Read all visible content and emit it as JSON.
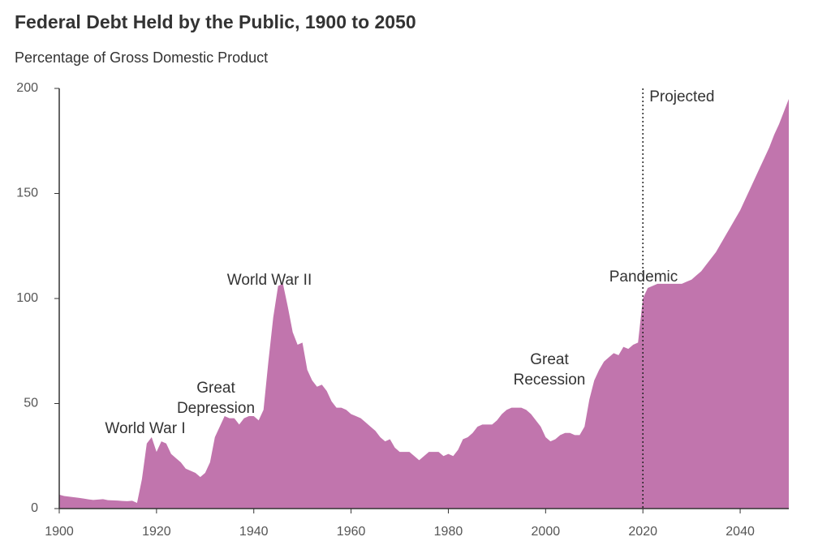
{
  "chart_data": {
    "type": "area",
    "title": "Federal Debt Held by the Public, 1900 to 2050",
    "subtitle": "Percentage of Gross Domestic Product",
    "color": "#c175ad",
    "x": [
      1900,
      1901,
      1902,
      1903,
      1904,
      1905,
      1906,
      1907,
      1908,
      1909,
      1910,
      1911,
      1912,
      1913,
      1914,
      1915,
      1916,
      1917,
      1918,
      1919,
      1920,
      1921,
      1922,
      1923,
      1924,
      1925,
      1926,
      1927,
      1928,
      1929,
      1930,
      1931,
      1932,
      1933,
      1934,
      1935,
      1936,
      1937,
      1938,
      1939,
      1940,
      1941,
      1942,
      1943,
      1944,
      1945,
      1946,
      1947,
      1948,
      1949,
      1950,
      1951,
      1952,
      1953,
      1954,
      1955,
      1956,
      1957,
      1958,
      1959,
      1960,
      1961,
      1962,
      1963,
      1964,
      1965,
      1966,
      1967,
      1968,
      1969,
      1970,
      1971,
      1972,
      1973,
      1974,
      1975,
      1976,
      1977,
      1978,
      1979,
      1980,
      1981,
      1982,
      1983,
      1984,
      1985,
      1986,
      1987,
      1988,
      1989,
      1990,
      1991,
      1992,
      1993,
      1994,
      1995,
      1996,
      1997,
      1998,
      1999,
      2000,
      2001,
      2002,
      2003,
      2004,
      2005,
      2006,
      2007,
      2008,
      2009,
      2010,
      2011,
      2012,
      2013,
      2014,
      2015,
      2016,
      2017,
      2018,
      2019,
      2020,
      2021,
      2022,
      2023,
      2024,
      2025,
      2026,
      2027,
      2028,
      2029,
      2030,
      2031,
      2032,
      2033,
      2034,
      2035,
      2036,
      2037,
      2038,
      2039,
      2040,
      2041,
      2042,
      2043,
      2044,
      2045,
      2046,
      2047,
      2048,
      2049,
      2050
    ],
    "values": [
      6.6,
      6,
      5.7,
      5.4,
      5.1,
      4.8,
      4.4,
      4.1,
      4.3,
      4.5,
      4,
      3.9,
      3.8,
      3.6,
      3.5,
      3.7,
      2.7,
      14,
      31,
      34,
      27,
      32,
      31,
      26,
      24,
      22,
      19,
      18,
      17,
      15,
      17,
      22,
      34,
      39,
      44,
      43,
      43,
      40,
      43,
      44,
      44,
      42,
      47,
      70,
      91,
      106,
      107,
      96,
      84,
      78,
      79,
      66,
      61,
      58,
      59,
      56,
      51,
      48,
      48,
      47,
      45,
      44,
      43,
      41,
      39,
      37,
      34,
      32,
      33,
      29,
      27,
      27,
      27,
      25,
      23,
      25,
      27,
      27,
      27,
      25,
      26,
      25,
      28,
      33,
      34,
      36,
      39,
      40,
      40,
      40,
      42,
      45,
      47,
      48,
      48,
      48,
      47,
      45,
      42,
      39,
      34,
      32,
      33,
      35,
      36,
      36,
      35,
      35,
      39,
      52,
      61,
      66,
      70,
      72,
      74,
      73,
      77,
      76,
      78,
      79,
      100,
      105,
      106,
      107,
      107,
      107,
      107,
      107,
      107,
      108,
      109,
      111,
      113,
      116,
      119,
      122,
      126,
      130,
      134,
      138,
      142,
      147,
      152,
      157,
      162,
      167,
      172,
      178,
      183,
      189,
      195
    ],
    "xlim": [
      1900,
      2050
    ],
    "xticks": [
      1900,
      1920,
      1940,
      1960,
      1980,
      2000,
      2020,
      2040
    ],
    "ylim": [
      0,
      200
    ],
    "yticks": [
      0,
      50,
      100,
      150,
      200
    ],
    "projection_start": 2020,
    "projection_label": "Projected",
    "annotations": [
      {
        "text": "World War I"
      },
      {
        "text": "Great Depression"
      },
      {
        "text": "World War II"
      },
      {
        "text": "Great Recession"
      },
      {
        "text": "Pandemic"
      }
    ]
  }
}
